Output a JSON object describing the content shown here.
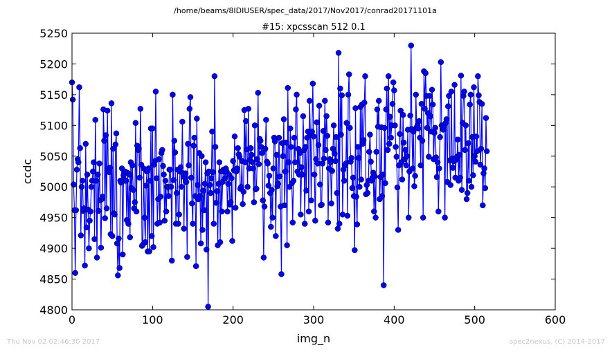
{
  "header": {
    "path": "/home/beams/8IDIUSER/spec_data/2017/Nov2017/conrad20171101a"
  },
  "footer": {
    "timestamp": "Thu Nov 02 02:46:30 2017",
    "credit": "spec2nexus, (C) 2014-2017"
  },
  "colors": {
    "series": "#0000ff",
    "marker": "#0000ff",
    "footer_text": "#c8c8c8"
  },
  "chart_data": {
    "type": "line",
    "title": "#15: xpcsscan 512 0.1",
    "xlabel": "img_n",
    "ylabel": "ccdc",
    "xlim": [
      0,
      600
    ],
    "ylim": [
      4800,
      5250
    ],
    "xticks": [
      "0",
      "100",
      "200",
      "300",
      "400",
      "500",
      "600"
    ],
    "yticks": [
      "4800",
      "4850",
      "4900",
      "4950",
      "5000",
      "5050",
      "5100",
      "5150",
      "5200",
      "5250"
    ],
    "grid": false,
    "legend": "none",
    "marker": "circle",
    "series": [
      {
        "x_start": 0,
        "x_step": 1,
        "values": [
          5170,
          5142,
          5004,
          4962,
          4860,
          4962,
          5028,
          5045,
          5040,
          5162,
          5063,
          4921,
          5000,
          5010,
          4961,
          4965,
          4872,
          5070,
          4934,
          5020,
          4963,
          4900,
          4945,
          4960,
          5000,
          5010,
          5025,
          5040,
          4915,
          5109,
          5010,
          4885,
          5020,
          4961,
          5038,
          4978,
          4901,
          4980,
          4984,
          5126,
          5075,
          4949,
          5084,
          4965,
          5124,
          5030,
          5024,
          5031,
          4923,
          5136,
          4920,
          5062,
          4957,
          4955,
          5069,
          5087,
          4908,
          4856,
          4916,
          4868,
          5010,
          5007,
          5030,
          4890,
          5019,
          5010,
          5025,
          5010,
          4946,
          5023,
          4940,
          5020,
          4918,
          5040,
          4998,
          5035,
          4995,
          4965,
          4975,
          5104,
          4960,
          5067,
          5060,
          5062,
          5015,
          5127,
          5036,
          4904,
          4906,
          5030,
          4950,
          4910,
          5002,
          5025,
          4895,
          5030,
          4895,
          5010,
          5095,
          4920,
          5095,
          4902,
          5036,
          5042,
          5155,
          5014,
          4940,
          4980,
          5045,
          4942,
          4984,
          5055,
          5060,
          5034,
          5020,
          4945,
          5010,
          4960,
          5000,
          5000,
          4985,
          5028,
          5028,
          5000,
          4880,
          5150,
          5011,
          5075,
          5056,
          4940,
          4990,
          5028,
          4940,
          4955,
          5025,
          5032,
          5000,
          5106,
          5022,
          4932,
          5015,
          5022,
          5008,
          4886,
          5070,
          5035,
          5127,
          5146,
          5015,
          4973,
          4940,
          5067,
          5080,
          4985,
          4871,
          5111,
          5003,
          4980,
          5055,
          4985,
          4908,
          5050,
          4930,
          4994,
          4962,
          5005,
          5040,
          4898,
          5022,
          4805,
          5025,
          5003,
          4990,
          5014,
          5090,
          5024,
          4940,
          5180,
          5065,
          4974,
          4993,
          4905,
          5005,
          5040,
          4910,
          5025,
          4960,
          5008,
          5028,
          5025,
          5014,
          5030,
          5025,
          4960,
          5005,
          5020,
          4971,
          4975,
          5014,
          4912,
          5042,
          5027,
          5082,
          4966,
          5025,
          5030,
          5063,
          5053,
          5049,
          4997,
          5000,
          5042,
          4972,
          4992,
          5125,
          5040,
          5107,
          5061,
          5000,
          5127,
          5030,
          5044,
          5063,
          5052,
          5040,
          5030,
          4975,
          5100,
          4996,
          4997,
          5045,
          5153,
          5037,
          5078,
          5075,
          5065,
          5055,
          4978,
          4885,
          4968,
          5062,
          5109,
          5041,
          5038,
          5002,
          5018,
          4990,
          4935,
          4995,
          4950,
          5030,
          5080,
          5074,
          4920,
          5052,
          5001,
          5005,
          5080,
          5017,
          4968,
          4858,
          5071,
          5050,
          5110,
          4970,
          5025,
          5072,
          4905,
          5161,
          5040,
          5000,
          5095,
          5065,
          5006,
          4942,
          5010,
          5080,
          5040,
          5126,
          5150,
          5025,
          5062,
          5020,
          5055,
          4955,
          5032,
          5020,
          5115,
          5060,
          4940,
          5065,
          4994,
          5080,
          5090,
          4960,
          5140,
          5085,
          4978,
          5090,
          5168,
          5082,
          5020,
          4945,
          5045,
          5105,
          5038,
          5068,
          5132,
          5004,
          4970,
          4971,
          5038,
          5091,
          5046,
          5140,
          5060,
          5115,
          5083,
          4942,
          5030,
          5045,
          5040,
          4973,
          5026,
          5062,
          5100,
          5054,
          5042,
          5081,
          4990,
          4932,
          5218,
          4940,
          5160,
          5085,
          5149,
          4955,
          5028,
          5010,
          5035,
          5038,
          5104,
          4953,
          5150,
          5183,
          5096,
          5041,
          5047,
          4998,
          5015,
          4985,
          4897,
          5128,
          4984,
          4939,
          5065,
          5047,
          5000,
          5130,
          5012,
          5134,
          5070,
          5076,
          5137,
          5180,
          4988,
          5003,
          4990,
          5010,
          5057,
          5085,
          5041,
          5010,
          5015,
          5023,
          4960,
          5017,
          4950,
          5057,
          5126,
          5098,
          5140,
          4980,
          5016,
          5097,
          4985,
          5020,
          4840,
          5096,
          5006,
          5126,
          5160,
          5060,
          5180,
          5070,
          5114,
          5080,
          5100,
          5135,
          5170,
          5157,
          5100,
          5065,
          5049,
          4999,
          4930,
          5035,
          5086,
          5124,
          5040,
          5012,
          5117,
          5072,
          5045,
          5060,
          5035,
          5050,
          5093,
          4950,
          5025,
          5116,
          5230,
          5094,
          5030,
          5090,
          5001,
          5018,
          5150,
          5097,
          5100,
          5095,
          5107,
          5080,
          5035,
          5135,
          5075,
          4950,
          5188,
          5127,
          5185,
          5148,
          5096,
          5120,
          5049,
          5148,
          5115,
          5090,
          5158,
          5134,
          5045,
          5088,
          5096,
          5048,
          5016,
          5040,
          4960,
          5030,
          5081,
          5203,
          5100,
          5094,
          5093,
          5100,
          4950,
          5104,
          5110,
          5008,
          5131,
          5148,
          5043,
          5003,
          5155,
          5046,
          5031,
          5042,
          5166,
          5015,
          5044,
          5049,
          5077,
          5010,
          5052,
          5015,
          5181,
          4995,
          5104,
          5148,
          5155,
          5060,
          5100,
          4980,
          4990,
          5071,
          5010,
          5134,
          5150,
          5000,
          5081,
          5019,
          5162,
          5050,
          5041,
          5082,
          5058,
          5180,
          5149,
          5138,
          5036,
          5062,
          5135,
          4970,
          5022,
          5030,
          4998,
          5112,
          5058
        ]
      }
    ]
  }
}
